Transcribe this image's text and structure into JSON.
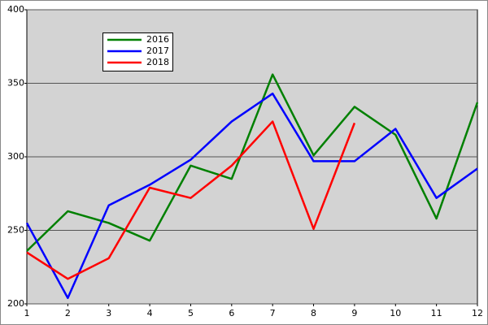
{
  "chart_data": {
    "type": "line",
    "x": [
      1,
      2,
      3,
      4,
      5,
      6,
      7,
      8,
      9,
      10,
      11,
      12
    ],
    "series": [
      {
        "name": "2016",
        "color": "#008000",
        "values": [
          236,
          263,
          255,
          243,
          294,
          285,
          356,
          301,
          334,
          315,
          258,
          337
        ]
      },
      {
        "name": "2017",
        "color": "#0000ff",
        "values": [
          255,
          204,
          267,
          281,
          298,
          324,
          343,
          297,
          297,
          319,
          272,
          292
        ]
      },
      {
        "name": "2018",
        "color": "#ff0000",
        "values": [
          235,
          217,
          231,
          279,
          272,
          294,
          324,
          251,
          323,
          null,
          null,
          null
        ]
      }
    ],
    "xlim": [
      1,
      12
    ],
    "xticks": [
      1,
      2,
      3,
      4,
      5,
      6,
      7,
      8,
      9,
      10,
      11,
      12
    ],
    "ylim": [
      200,
      400
    ],
    "yticks": [
      200,
      250,
      300,
      350,
      400
    ],
    "grid": true,
    "legend": "upper left"
  }
}
